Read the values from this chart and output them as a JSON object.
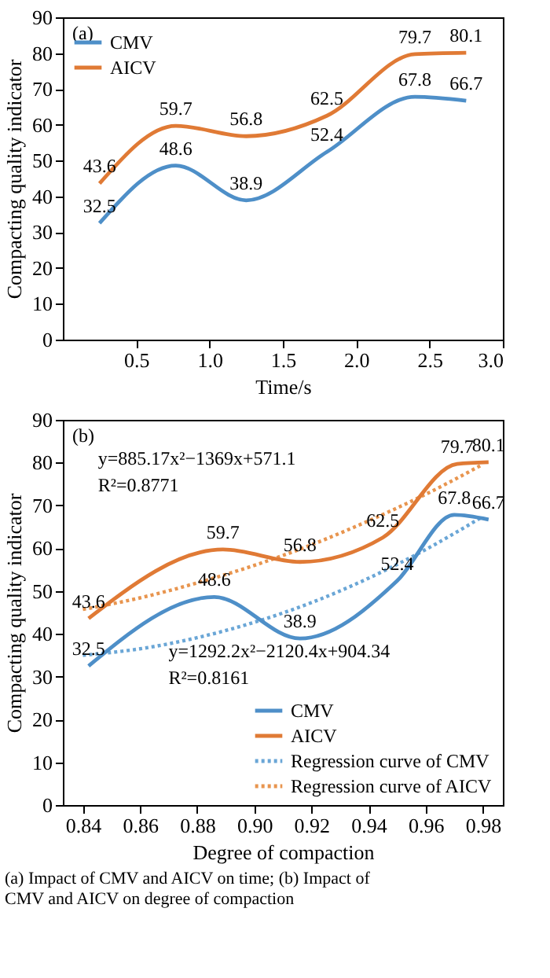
{
  "chart_data": [
    {
      "type": "line",
      "title": "(a)",
      "xlabel": "Time/s",
      "ylabel": "Compacting quality indicator",
      "xlim": [
        0,
        3
      ],
      "xticks": [
        0.5,
        {
          "value": 1,
          "label": "1.0"
        },
        1.5,
        {
          "value": 2,
          "label": "2.0"
        },
        2.5,
        {
          "value": 3,
          "label": "3.0"
        }
      ],
      "ylim": [
        0,
        90
      ],
      "yticks": [
        0,
        10,
        20,
        30,
        40,
        50,
        60,
        70,
        80,
        90
      ],
      "legend": "top left",
      "grid": false,
      "marker": "none",
      "series": [
        {
          "name": "CMV",
          "color": "#4e8fc8",
          "x": [
            0.25,
            0.77,
            1.25,
            1.8,
            2.4,
            2.75
          ],
          "values": [
            32.5,
            48.6,
            38.9,
            52.4,
            67.8,
            66.7
          ],
          "value_labels": [
            "32.5",
            "48.6",
            "38.9",
            "52.4",
            "67.8",
            "66.7"
          ],
          "line_style": "solid"
        },
        {
          "name": "AICV",
          "color": "#e07a35",
          "x": [
            0.25,
            0.77,
            1.25,
            1.8,
            2.4,
            2.75
          ],
          "values": [
            43.6,
            59.7,
            56.8,
            62.5,
            79.7,
            80.1
          ],
          "value_labels": [
            "43.6",
            "59.7",
            "56.8",
            "62.5",
            "79.7",
            "80.1"
          ],
          "line_style": "solid"
        }
      ]
    },
    {
      "type": "line",
      "title": "(b)",
      "xlabel": "Degree of compaction",
      "ylabel": "Compacting quality indicator",
      "xlim": [
        0.833,
        0.987
      ],
      "xticks": [
        0.84,
        0.86,
        0.88,
        {
          "value": 0.9,
          "label": "0.90"
        },
        0.92,
        0.94,
        0.96,
        0.98
      ],
      "ylim": [
        0,
        90
      ],
      "yticks": [
        0,
        10,
        20,
        30,
        40,
        50,
        60,
        70,
        80,
        90
      ],
      "legend": "bottom right",
      "grid": false,
      "marker": "none",
      "series": [
        {
          "name": "CMV",
          "color": "#4e8fc8",
          "x": [
            0.842,
            0.886,
            0.916,
            0.95,
            0.97,
            0.982
          ],
          "values": [
            32.5,
            48.6,
            38.9,
            52.4,
            67.8,
            66.7
          ],
          "value_labels": [
            "32.5",
            "48.6",
            "38.9",
            "52.4",
            "67.8",
            "66.7"
          ],
          "line_style": "solid"
        },
        {
          "name": "AICV",
          "color": "#e07a35",
          "x": [
            0.842,
            0.889,
            0.916,
            0.945,
            0.971,
            0.982
          ],
          "values": [
            43.6,
            59.7,
            56.8,
            62.5,
            79.7,
            80.1
          ],
          "value_labels": [
            "43.6",
            "59.7",
            "56.8",
            "62.5",
            "79.7",
            "80.1"
          ],
          "line_style": "solid"
        },
        {
          "name": "Regression curve of CMV",
          "color": "#6aa6d6",
          "x": [
            0.84,
            0.86,
            0.88,
            0.9,
            0.92,
            0.94,
            0.96,
            0.98
          ],
          "values": [
            35.0,
            36.5,
            39.1,
            42.7,
            47.3,
            53.0,
            59.7,
            67.4
          ],
          "line_style": "dotted"
        },
        {
          "name": "Regression curve of AICV",
          "color": "#e8954f",
          "x": [
            0.84,
            0.86,
            0.88,
            0.9,
            0.92,
            0.94,
            0.96,
            0.98
          ],
          "values": [
            45.7,
            48.4,
            51.9,
            56.0,
            60.8,
            66.4,
            72.6,
            79.6
          ],
          "line_style": "dotted"
        }
      ],
      "annotations": [
        "y=885.17x²−1369x+571.1",
        "R²=0.8771",
        "y=1292.2x²−2120.4x+904.34",
        "R²=0.8161",
        "(a) Impact of CMV and AICV on time; (b) Impact of CMV and AICV on degree of compaction"
      ]
    }
  ]
}
